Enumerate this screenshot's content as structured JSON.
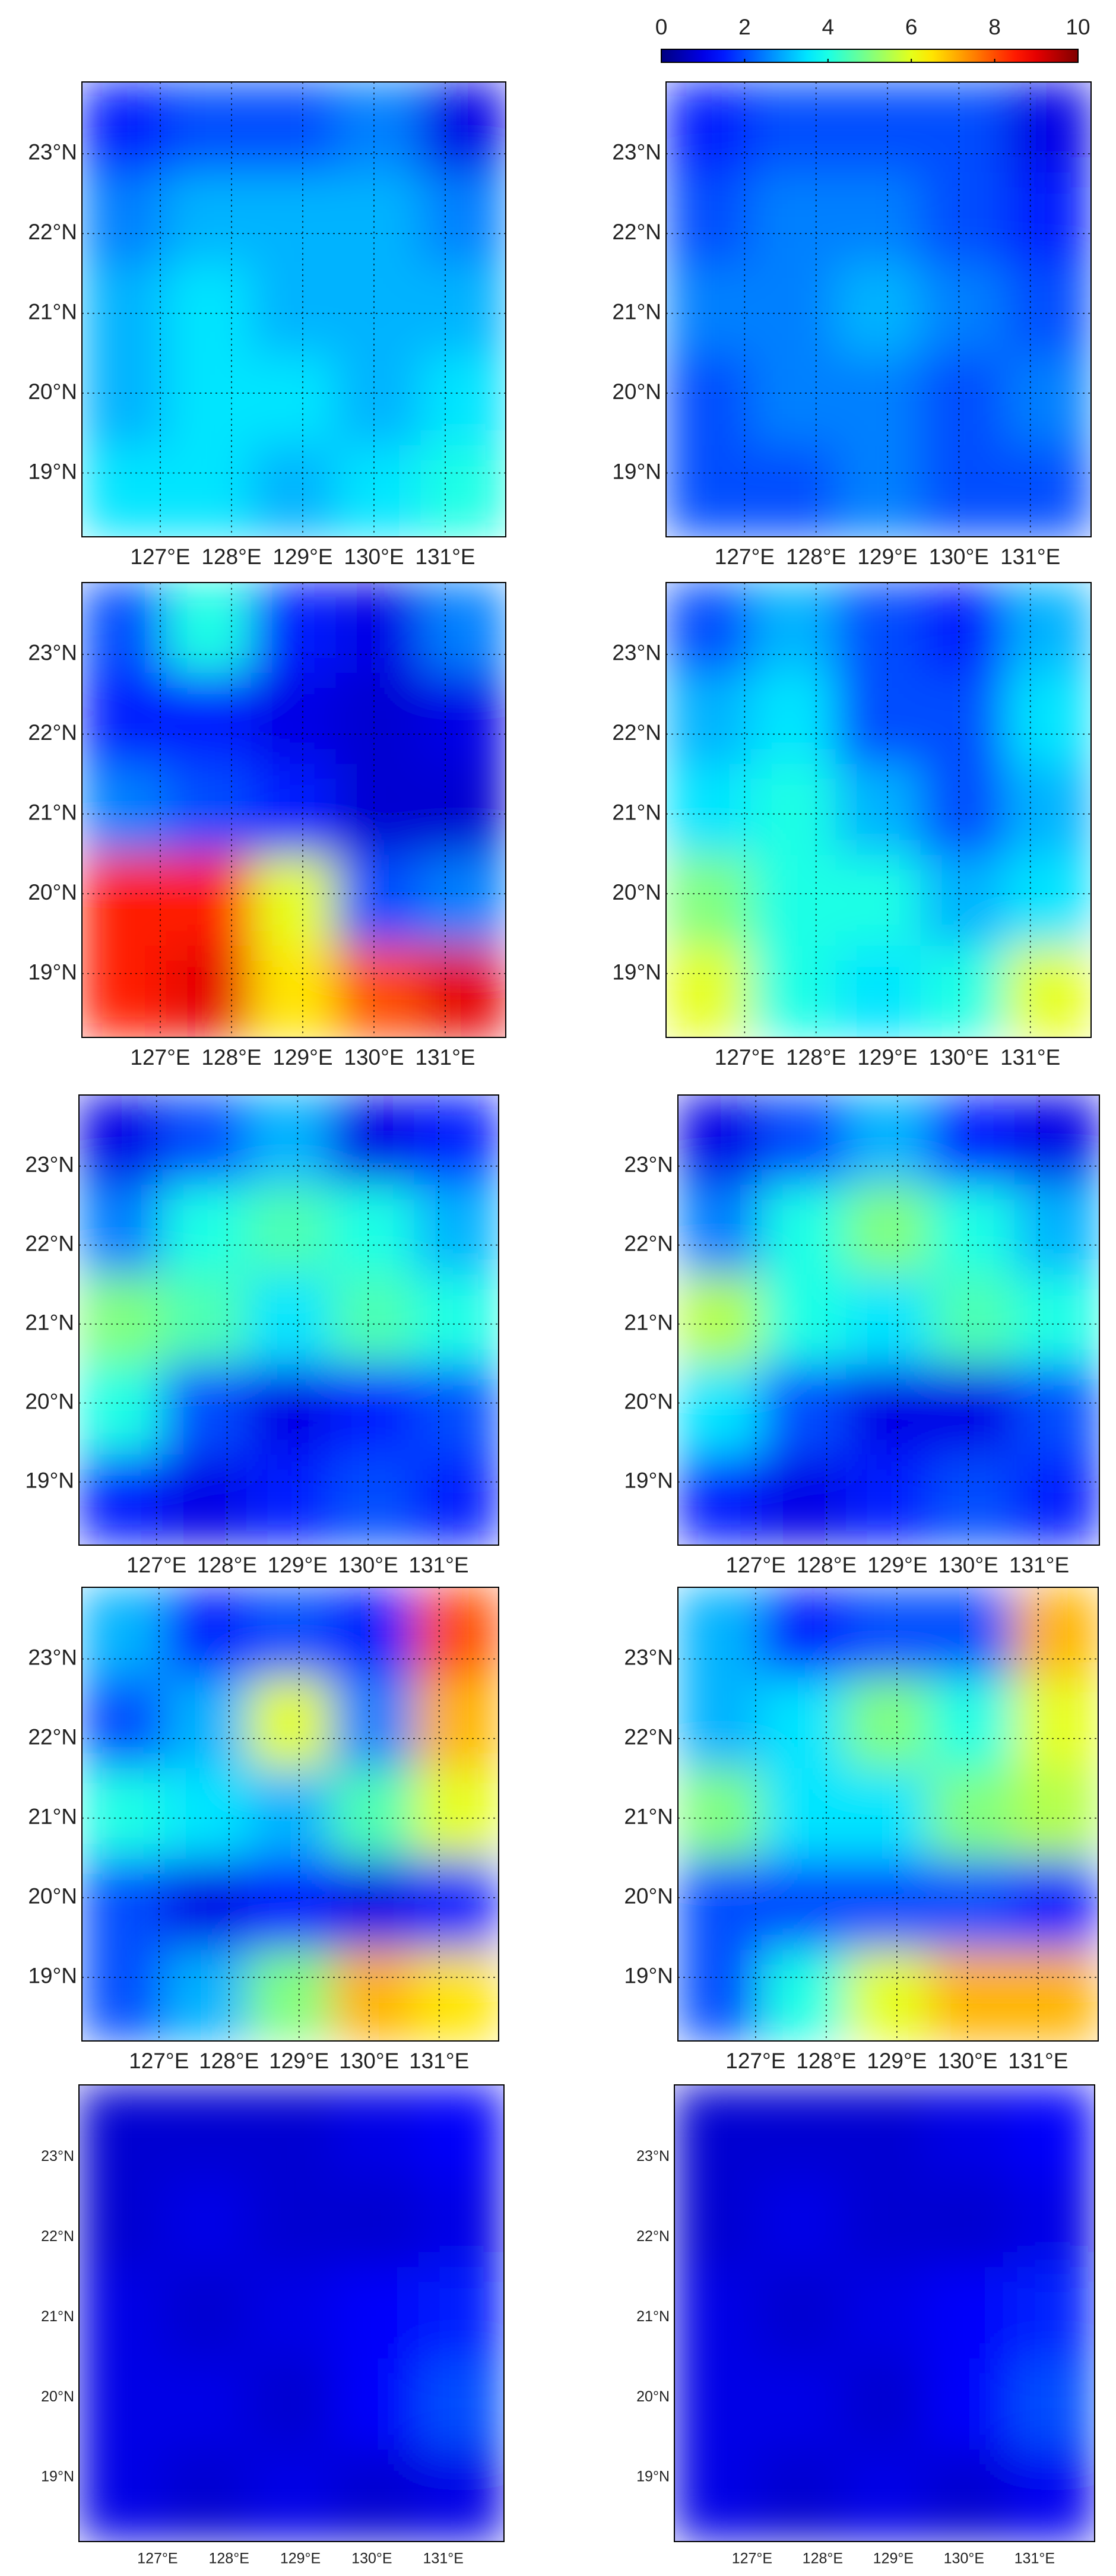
{
  "colorbar": {
    "clim": [
      0,
      10
    ],
    "ticks": [
      0,
      2,
      4,
      6,
      8,
      10
    ]
  },
  "xlim": [
    125.9,
    131.85
  ],
  "ylim": [
    18.2,
    23.9
  ],
  "lon_ticks": [
    {
      "value": 127,
      "label": "127°E"
    },
    {
      "value": 128,
      "label": "128°E"
    },
    {
      "value": 129,
      "label": "129°E"
    },
    {
      "value": 130,
      "label": "130°E"
    },
    {
      "value": 131,
      "label": "131°E"
    }
  ],
  "lat_ticks": [
    {
      "value": 19,
      "label": "19°N"
    },
    {
      "value": 20,
      "label": "20°N"
    },
    {
      "value": 21,
      "label": "21°N"
    },
    {
      "value": 22,
      "label": "22°N"
    },
    {
      "value": 23,
      "label": "23°N"
    }
  ],
  "panels": [
    {
      "grid": [
        [
          1.5,
          2,
          2,
          2.5,
          1
        ],
        [
          2.5,
          3,
          3,
          3,
          2.5
        ],
        [
          3,
          3.5,
          3,
          3,
          3
        ],
        [
          3,
          3.5,
          3.5,
          3,
          3.5
        ],
        [
          3.5,
          3.5,
          3,
          3.5,
          4
        ]
      ]
    },
    {
      "grid": [
        [
          1.5,
          2,
          2,
          2,
          1
        ],
        [
          2,
          2.5,
          2.5,
          2,
          1.5
        ],
        [
          2.5,
          2.5,
          3,
          2.5,
          2
        ],
        [
          2,
          2.5,
          2.5,
          2,
          2.5
        ],
        [
          2,
          2,
          2.5,
          2,
          2
        ]
      ]
    },
    {
      "grid": [
        [
          2,
          4,
          1.5,
          1,
          2.5
        ],
        [
          1.5,
          1.5,
          1,
          0.8,
          1
        ],
        [
          2.5,
          2,
          1.5,
          0.8,
          0.8
        ],
        [
          8.5,
          8.5,
          6,
          2,
          2.5
        ],
        [
          8.5,
          9,
          6.5,
          8,
          9
        ]
      ]
    },
    {
      "grid": [
        [
          2,
          3,
          2,
          1.5,
          3
        ],
        [
          3,
          3.5,
          2,
          2,
          3.5
        ],
        [
          3.5,
          4,
          3,
          2,
          3
        ],
        [
          5,
          4,
          4,
          3,
          3.5
        ],
        [
          6,
          4,
          3.5,
          4,
          6
        ]
      ]
    },
    {
      "grid": [
        [
          1,
          2,
          3,
          1,
          1.5
        ],
        [
          2.5,
          4,
          4.5,
          4,
          3
        ],
        [
          5,
          4.5,
          3.5,
          4.5,
          4
        ],
        [
          4,
          2,
          1,
          1.5,
          2
        ],
        [
          1.5,
          1,
          1.5,
          2,
          1.5
        ]
      ]
    },
    {
      "grid": [
        [
          1,
          2,
          3,
          1.5,
          1
        ],
        [
          2.5,
          4,
          5,
          4,
          3
        ],
        [
          5.5,
          4,
          3.5,
          4.5,
          4
        ],
        [
          3.5,
          2,
          1,
          1,
          2
        ],
        [
          1.5,
          1,
          1.5,
          2,
          1.5
        ]
      ]
    },
    {
      "grid": [
        [
          3,
          1.5,
          2,
          1.5,
          8
        ],
        [
          2,
          3,
          6,
          2.5,
          7
        ],
        [
          4,
          3.5,
          3,
          4.5,
          6
        ],
        [
          2,
          1,
          1.5,
          1,
          1.5
        ],
        [
          2,
          3,
          5,
          7,
          6.5
        ]
      ]
    },
    {
      "grid": [
        [
          3,
          1.5,
          2,
          2,
          7
        ],
        [
          3,
          3.5,
          5,
          4,
          6
        ],
        [
          5,
          3.5,
          3.5,
          5,
          5.5
        ],
        [
          2,
          2,
          2,
          2,
          1.5
        ],
        [
          2,
          4,
          6,
          7,
          7
        ]
      ]
    },
    {
      "grid": [
        [
          0.8,
          0.8,
          0.8,
          1,
          1.2
        ],
        [
          0.8,
          1,
          0.8,
          0.8,
          1
        ],
        [
          1,
          0.8,
          1,
          1.2,
          1.5
        ],
        [
          1,
          1,
          0.8,
          1.2,
          2
        ],
        [
          1,
          0.8,
          1,
          0.8,
          1
        ]
      ]
    },
    {
      "grid": [
        [
          0.8,
          0.8,
          0.8,
          1,
          1.2
        ],
        [
          0.8,
          1,
          0.8,
          0.8,
          1
        ],
        [
          1,
          0.8,
          1,
          1.2,
          1.6
        ],
        [
          1,
          1,
          0.8,
          1.2,
          2
        ],
        [
          1,
          0.8,
          1,
          0.8,
          1.1
        ]
      ]
    }
  ]
}
